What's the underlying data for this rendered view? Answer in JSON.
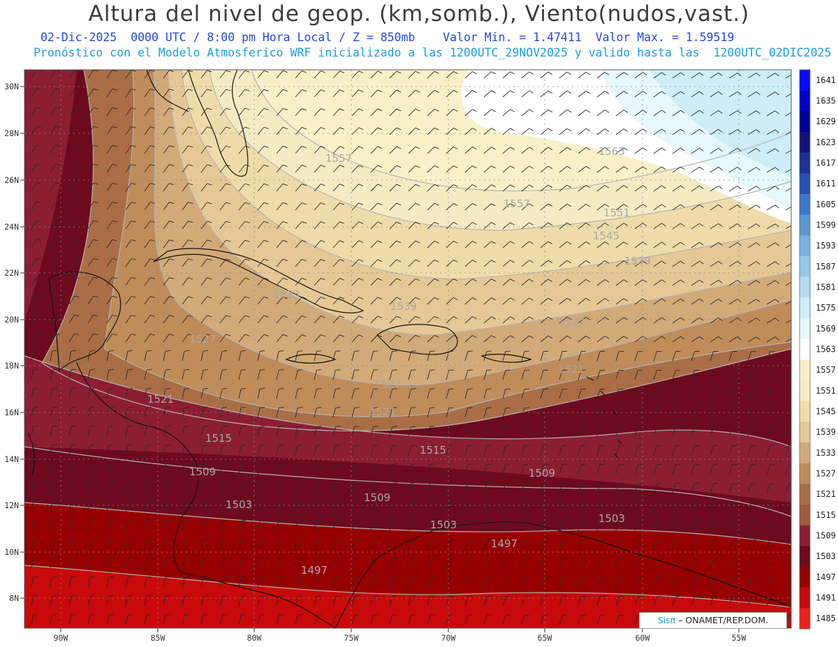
{
  "header": {
    "title": "Altura del nivel de geop. (km,somb.), Viento(nudos,vast.)",
    "line1": "02-Dic-2025  0000 UTC / 8:00 pm Hora Local / Z = 850mb    Valor Min. = 1.47411  Valor Max. = 1.59519",
    "line2": "Pronóstico con el Modelo Atmosferico WRF inicializado a las 1200UTC_29NOV2025 y valido hasta las  1200UTC_02DIC2025"
  },
  "map": {
    "lon_labels": [
      "90W",
      "85W",
      "80W",
      "75W",
      "70W",
      "65W",
      "60W",
      "55W"
    ],
    "lat_labels": [
      "30N",
      "28N",
      "26N",
      "24N",
      "22N",
      "20N",
      "18N",
      "16N",
      "14N",
      "12N",
      "10N",
      "8N"
    ],
    "contour_labels": [
      {
        "text": "1557"
      },
      {
        "text": "1557"
      },
      {
        "text": "1563"
      },
      {
        "text": "1551"
      },
      {
        "text": "1545"
      },
      {
        "text": "1539"
      },
      {
        "text": "1533"
      },
      {
        "text": "1539"
      },
      {
        "text": "1527"
      },
      {
        "text": "1527"
      },
      {
        "text": "1527"
      },
      {
        "text": "1521"
      },
      {
        "text": "1521"
      },
      {
        "text": "1521"
      },
      {
        "text": "1515"
      },
      {
        "text": "1515"
      },
      {
        "text": "1509"
      },
      {
        "text": "1509"
      },
      {
        "text": "1509"
      },
      {
        "text": "1503"
      },
      {
        "text": "1503"
      },
      {
        "text": "1503"
      },
      {
        "text": "1497"
      },
      {
        "text": "1497"
      }
    ]
  },
  "colorbar": {
    "levels": [
      "1641",
      "1635",
      "1629",
      "1623",
      "1617",
      "1611",
      "1605",
      "1599",
      "1593",
      "1587",
      "1581",
      "1575",
      "1569",
      "1563",
      "1557",
      "1551",
      "1545",
      "1539",
      "1533",
      "1527",
      "1521",
      "1515",
      "1509",
      "1503",
      "1497",
      "1491",
      "1485"
    ],
    "colors": [
      "#0a0aff",
      "#0000c8",
      "#000096",
      "#141478",
      "#1e3296",
      "#2850b4",
      "#3c78c8",
      "#5a96d2",
      "#78b4e1",
      "#96c8eb",
      "#b4dcf0",
      "#cdeef8",
      "#e6f8fc",
      "#ffffff",
      "#faf0c8",
      "#f5ebc3",
      "#f0dcaa",
      "#e6c896",
      "#d2aa78",
      "#c08c5a",
      "#aa6e46",
      "#a05a3c",
      "#8c1e32",
      "#6e0a1e",
      "#960000",
      "#c80a0a",
      "#f01e1e"
    ]
  },
  "credit": {
    "brand": "Sisπ",
    "text": "– ONAMET/REP.DOM."
  }
}
